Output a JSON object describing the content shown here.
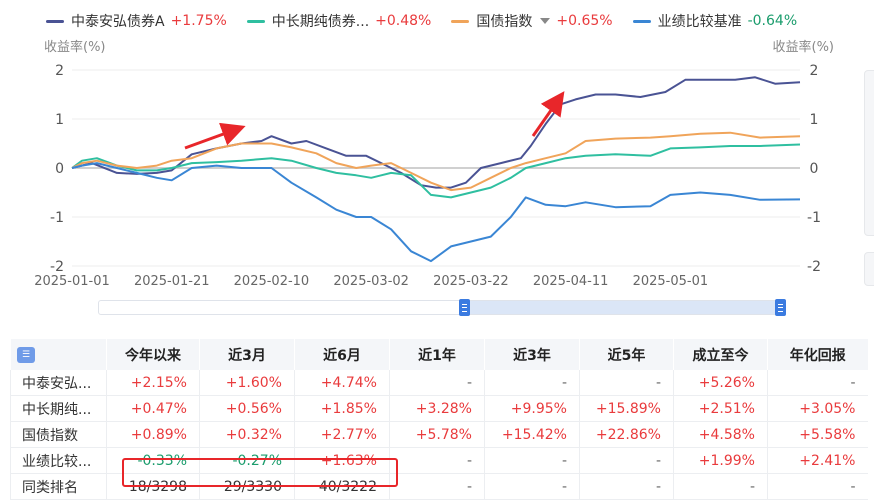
{
  "legend": [
    {
      "name": "中泰安弘债券A",
      "value": "+1.75%",
      "color": "#4a5394",
      "trend": "up",
      "caret": false
    },
    {
      "name": "中长期纯债券...",
      "value": "+0.48%",
      "color": "#2fbfa0",
      "trend": "up",
      "caret": false
    },
    {
      "name": "国债指数",
      "value": "+0.65%",
      "color": "#f0a45a",
      "trend": "up",
      "caret": true
    },
    {
      "name": "业绩比较基准",
      "value": "-0.64%",
      "color": "#3a86d4",
      "trend": "down",
      "caret": false
    }
  ],
  "chart_data": {
    "type": "line",
    "ylabel_left": "收益率(%)",
    "ylabel_right": "收益率(%)",
    "ylim": [
      -2,
      2
    ],
    "yticks": [
      2,
      1,
      0,
      -1,
      -2
    ],
    "grid": true,
    "legend_position": "top-left",
    "x_ticks": [
      "2025-01-01",
      "2025-01-21",
      "2025-02-10",
      "2025-03-02",
      "2025-03-22",
      "2025-04-11",
      "2025-05-01"
    ],
    "x_range": [
      "2025-01-01",
      "2025-05-27"
    ],
    "series": [
      {
        "name": "中泰安弘债券A",
        "color": "#4a5394",
        "x": [
          "2025-01-01",
          "2025-01-05",
          "2025-01-10",
          "2025-01-14",
          "2025-01-18",
          "2025-01-21",
          "2025-01-25",
          "2025-01-30",
          "2025-02-04",
          "2025-02-08",
          "2025-02-10",
          "2025-02-14",
          "2025-02-17",
          "2025-02-21",
          "2025-02-25",
          "2025-03-01",
          "2025-03-04",
          "2025-03-08",
          "2025-03-12",
          "2025-03-15",
          "2025-03-18",
          "2025-03-21",
          "2025-03-24",
          "2025-03-28",
          "2025-04-01",
          "2025-04-03",
          "2025-04-06",
          "2025-04-09",
          "2025-04-12",
          "2025-04-16",
          "2025-04-20",
          "2025-04-25",
          "2025-04-30",
          "2025-05-04",
          "2025-05-09",
          "2025-05-14",
          "2025-05-18",
          "2025-05-22",
          "2025-05-27"
        ],
        "y": [
          0.0,
          0.1,
          -0.1,
          -0.12,
          -0.1,
          -0.05,
          0.28,
          0.4,
          0.5,
          0.55,
          0.65,
          0.5,
          0.55,
          0.4,
          0.25,
          0.25,
          0.1,
          -0.1,
          -0.35,
          -0.4,
          -0.4,
          -0.3,
          0.0,
          0.1,
          0.2,
          0.45,
          0.9,
          1.3,
          1.4,
          1.5,
          1.5,
          1.45,
          1.55,
          1.8,
          1.8,
          1.8,
          1.85,
          1.72,
          1.75
        ]
      },
      {
        "name": "中长期纯债券...",
        "color": "#2fbfa0",
        "x": [
          "2025-01-01",
          "2025-01-03",
          "2025-01-06",
          "2025-01-10",
          "2025-01-14",
          "2025-01-18",
          "2025-01-21",
          "2025-01-25",
          "2025-01-30",
          "2025-02-04",
          "2025-02-10",
          "2025-02-14",
          "2025-02-19",
          "2025-02-23",
          "2025-02-27",
          "2025-03-02",
          "2025-03-06",
          "2025-03-10",
          "2025-03-14",
          "2025-03-18",
          "2025-03-22",
          "2025-03-26",
          "2025-03-30",
          "2025-04-02",
          "2025-04-06",
          "2025-04-10",
          "2025-04-14",
          "2025-04-20",
          "2025-04-27",
          "2025-05-01",
          "2025-05-07",
          "2025-05-13",
          "2025-05-19",
          "2025-05-27"
        ],
        "y": [
          0.0,
          0.15,
          0.2,
          0.05,
          -0.05,
          -0.05,
          0.0,
          0.1,
          0.12,
          0.15,
          0.2,
          0.15,
          0.0,
          -0.1,
          -0.15,
          -0.2,
          -0.1,
          -0.15,
          -0.55,
          -0.6,
          -0.5,
          -0.4,
          -0.2,
          0.0,
          0.1,
          0.2,
          0.25,
          0.28,
          0.25,
          0.4,
          0.42,
          0.45,
          0.45,
          0.48
        ]
      },
      {
        "name": "国债指数",
        "color": "#f0a45a",
        "x": [
          "2025-01-01",
          "2025-01-03",
          "2025-01-06",
          "2025-01-10",
          "2025-01-14",
          "2025-01-18",
          "2025-01-21",
          "2025-01-25",
          "2025-01-30",
          "2025-02-04",
          "2025-02-10",
          "2025-02-14",
          "2025-02-19",
          "2025-02-23",
          "2025-02-27",
          "2025-03-02",
          "2025-03-06",
          "2025-03-10",
          "2025-03-14",
          "2025-03-18",
          "2025-03-22",
          "2025-03-26",
          "2025-03-30",
          "2025-04-02",
          "2025-04-06",
          "2025-04-10",
          "2025-04-14",
          "2025-04-20",
          "2025-04-27",
          "2025-05-01",
          "2025-05-07",
          "2025-05-13",
          "2025-05-19",
          "2025-05-27"
        ],
        "y": [
          0.0,
          0.1,
          0.15,
          0.05,
          0.0,
          0.05,
          0.15,
          0.2,
          0.4,
          0.5,
          0.5,
          0.42,
          0.3,
          0.1,
          0.0,
          0.05,
          0.1,
          -0.1,
          -0.3,
          -0.45,
          -0.4,
          -0.2,
          0.0,
          0.1,
          0.2,
          0.3,
          0.55,
          0.6,
          0.62,
          0.65,
          0.7,
          0.72,
          0.62,
          0.65
        ]
      },
      {
        "name": "业绩比较基准",
        "color": "#3a86d4",
        "x": [
          "2025-01-01",
          "2025-01-03",
          "2025-01-06",
          "2025-01-10",
          "2025-01-14",
          "2025-01-18",
          "2025-01-21",
          "2025-01-25",
          "2025-01-30",
          "2025-02-04",
          "2025-02-10",
          "2025-02-14",
          "2025-02-19",
          "2025-02-23",
          "2025-02-27",
          "2025-03-02",
          "2025-03-06",
          "2025-03-10",
          "2025-03-14",
          "2025-03-18",
          "2025-03-22",
          "2025-03-26",
          "2025-03-30",
          "2025-04-02",
          "2025-04-06",
          "2025-04-10",
          "2025-04-14",
          "2025-04-20",
          "2025-04-27",
          "2025-05-01",
          "2025-05-07",
          "2025-05-13",
          "2025-05-19",
          "2025-05-27"
        ],
        "y": [
          0.0,
          0.05,
          0.1,
          0.0,
          -0.1,
          -0.2,
          -0.25,
          0.0,
          0.05,
          0.0,
          0.0,
          -0.3,
          -0.6,
          -0.85,
          -1.0,
          -1.0,
          -1.25,
          -1.7,
          -1.9,
          -1.6,
          -1.5,
          -1.4,
          -1.0,
          -0.6,
          -0.75,
          -0.78,
          -0.7,
          -0.8,
          -0.78,
          -0.55,
          -0.5,
          -0.55,
          -0.65,
          -0.64
        ]
      }
    ]
  },
  "slider": {
    "start_fraction": 0.535,
    "end_fraction": 1.0
  },
  "table": {
    "icon": "table-settings-icon",
    "headers": [
      "今年以来",
      "近3月",
      "近6月",
      "近1年",
      "近3年",
      "近5年",
      "成立至今",
      "年化回报"
    ],
    "rows": [
      {
        "name": "中泰安弘...",
        "cells": [
          "+2.15%",
          "+1.60%",
          "+4.74%",
          "-",
          "-",
          "-",
          "+5.26%",
          "-"
        ]
      },
      {
        "name": "中长期纯...",
        "cells": [
          "+0.47%",
          "+0.56%",
          "+1.85%",
          "+3.28%",
          "+9.95%",
          "+15.89%",
          "+2.51%",
          "+3.05%"
        ]
      },
      {
        "name": "国债指数",
        "cells": [
          "+0.89%",
          "+0.32%",
          "+2.77%",
          "+5.78%",
          "+15.42%",
          "+22.86%",
          "+4.58%",
          "+5.58%"
        ]
      },
      {
        "name": "业绩比较...",
        "cells": [
          "-0.33%",
          "-0.27%",
          "+1.63%",
          "-",
          "-",
          "-",
          "+1.99%",
          "+2.41%"
        ]
      },
      {
        "name": "同类排名",
        "cells": [
          "18/3298",
          "29/3330",
          "40/3222",
          "-",
          "-",
          "-",
          "-",
          "-"
        ]
      }
    ]
  }
}
